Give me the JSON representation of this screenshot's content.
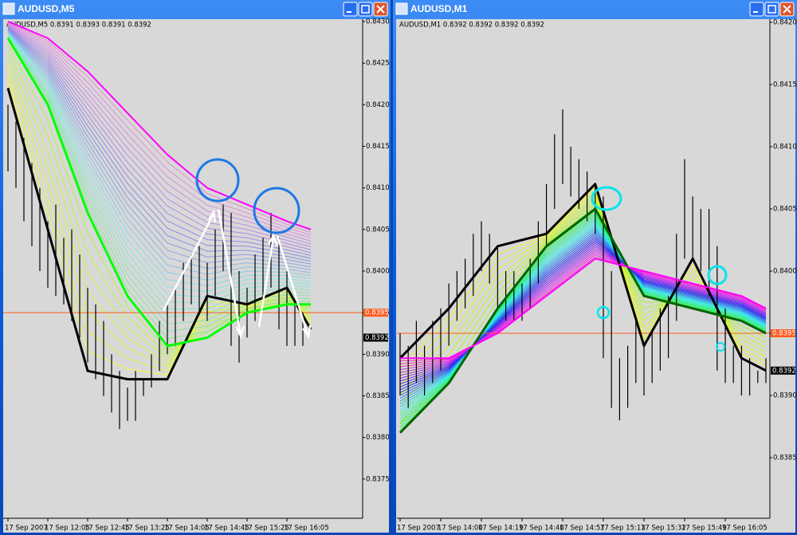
{
  "chart_data": [
    {
      "type": "ohlc",
      "title": "AUDUSD,M5",
      "subtitle": "AUDUSD,M5  0.8391 0.8393 0.8391 0.8392",
      "ylim": [
        0.837,
        0.843
      ],
      "yticks": [
        {
          "value": 0.843,
          "label": "0.8430"
        },
        {
          "value": 0.8425,
          "label": "0.8425"
        },
        {
          "value": 0.842,
          "label": "0.8420"
        },
        {
          "value": 0.8415,
          "label": "0.8415"
        },
        {
          "value": 0.841,
          "label": "0.8410"
        },
        {
          "value": 0.8405,
          "label": "0.8405"
        },
        {
          "value": 0.84,
          "label": "0.8400"
        },
        {
          "value": 0.8395,
          "label": "0.8395"
        },
        {
          "value": 0.839,
          "label": "0.8390"
        },
        {
          "value": 0.8385,
          "label": "0.8385"
        },
        {
          "value": 0.838,
          "label": "0.8380"
        },
        {
          "value": 0.8375,
          "label": "0.8375"
        }
      ],
      "xticks": [
        {
          "value": 0,
          "label": "17 Sep 2007"
        },
        {
          "value": 5,
          "label": "17 Sep 12:05"
        },
        {
          "value": 10,
          "label": "17 Sep 12:45"
        },
        {
          "value": 15,
          "label": "17 Sep 13:25"
        },
        {
          "value": 20,
          "label": "17 Sep 14:05"
        },
        {
          "value": 25,
          "label": "17 Sep 14:45"
        },
        {
          "value": 30,
          "label": "17 Sep 15:25"
        },
        {
          "value": 35,
          "label": "17 Sep 16:05"
        }
      ],
      "high": [
        0.842,
        0.8418,
        0.8416,
        0.8413,
        0.841,
        0.8406,
        0.8408,
        0.8404,
        0.8405,
        0.8402,
        0.8398,
        0.8396,
        0.8394,
        0.839,
        0.8388,
        0.8386,
        0.8388,
        0.8387,
        0.839,
        0.8394,
        0.8396,
        0.8398,
        0.8401,
        0.8402,
        0.8403,
        0.8401,
        0.8405,
        0.8408,
        0.8407,
        0.84,
        0.8398,
        0.8402,
        0.8404,
        0.8407,
        0.8404,
        0.84,
        0.8396,
        0.8395
      ],
      "low": [
        0.8412,
        0.841,
        0.8406,
        0.8403,
        0.84,
        0.8398,
        0.8397,
        0.8396,
        0.8394,
        0.8392,
        0.8389,
        0.8387,
        0.8385,
        0.8383,
        0.8381,
        0.8382,
        0.8382,
        0.8385,
        0.8386,
        0.8388,
        0.839,
        0.8391,
        0.8394,
        0.8396,
        0.8395,
        0.8394,
        0.8397,
        0.84,
        0.8391,
        0.8389,
        0.8392,
        0.8394,
        0.8396,
        0.8398,
        0.8393,
        0.8391,
        0.8391,
        0.8391
      ],
      "lines": [
        {
          "color": "#000000",
          "x": [
            0,
            5,
            10,
            15,
            20,
            25,
            30,
            35,
            38
          ],
          "values": [
            0.8422,
            0.8405,
            0.8388,
            0.8387,
            0.8387,
            0.8397,
            0.8396,
            0.8398,
            0.8393
          ]
        },
        {
          "color": "#00ff00",
          "x": [
            0,
            5,
            10,
            15,
            20,
            25,
            30,
            35,
            38
          ],
          "values": [
            0.8428,
            0.842,
            0.8407,
            0.8397,
            0.8391,
            0.8392,
            0.8395,
            0.8396,
            0.8396
          ]
        },
        {
          "color": "#ff00ff",
          "x": [
            0,
            5,
            10,
            15,
            20,
            25,
            30,
            35,
            38
          ],
          "values": [
            0.843,
            0.8428,
            0.8424,
            0.8419,
            0.8414,
            0.841,
            0.8408,
            0.8406,
            0.8405
          ]
        }
      ],
      "price_line": {
        "value": 0.8395,
        "label": "0.8395",
        "color": "#ff5a1e"
      },
      "bid": {
        "value": 0.8392,
        "label": "0.8392"
      }
    },
    {
      "type": "ohlc",
      "title": "AUDUSD,M1",
      "subtitle": "AUDUSD,M1  0.8392 0.8392 0.8392 0.8392",
      "ylim": [
        0.838,
        0.842
      ],
      "yticks": [
        {
          "value": 0.842,
          "label": "0.8420"
        },
        {
          "value": 0.8415,
          "label": "0.8415"
        },
        {
          "value": 0.841,
          "label": "0.8410"
        },
        {
          "value": 0.8405,
          "label": "0.8405"
        },
        {
          "value": 0.84,
          "label": "0.8400"
        },
        {
          "value": 0.8395,
          "label": "0.8395"
        },
        {
          "value": 0.839,
          "label": "0.8390"
        },
        {
          "value": 0.8385,
          "label": "0.8385"
        }
      ],
      "xticks": [
        {
          "value": 0,
          "label": "17 Sep 2007"
        },
        {
          "value": 5,
          "label": "17 Sep 14:00"
        },
        {
          "value": 10,
          "label": "17 Sep 14:19"
        },
        {
          "value": 15,
          "label": "17 Sep 14:40"
        },
        {
          "value": 20,
          "label": "17 Sep 14:57"
        },
        {
          "value": 25,
          "label": "17 Sep 15:13"
        },
        {
          "value": 30,
          "label": "17 Sep 15:32"
        },
        {
          "value": 35,
          "label": "17 Sep 15:49"
        },
        {
          "value": 40,
          "label": "17 Sep 16:05"
        }
      ],
      "high": [
        0.8395,
        0.8394,
        0.8396,
        0.8394,
        0.8396,
        0.8397,
        0.8399,
        0.84,
        0.8401,
        0.8403,
        0.8404,
        0.8403,
        0.8402,
        0.84,
        0.84,
        0.8399,
        0.8401,
        0.8404,
        0.8407,
        0.8411,
        0.8413,
        0.841,
        0.8409,
        0.8408,
        0.8407,
        0.8406,
        0.84,
        0.8393,
        0.8394,
        0.8396,
        0.8394,
        0.8395,
        0.8397,
        0.8398,
        0.8403,
        0.8409,
        0.8406,
        0.8405,
        0.8405,
        0.8402,
        0.8397,
        0.8394,
        0.8394,
        0.8393,
        0.8392,
        0.8393
      ],
      "low": [
        0.839,
        0.8389,
        0.8391,
        0.839,
        0.8391,
        0.8392,
        0.8394,
        0.8396,
        0.8397,
        0.8398,
        0.84,
        0.8399,
        0.8397,
        0.8396,
        0.8396,
        0.8396,
        0.8397,
        0.8399,
        0.8402,
        0.8405,
        0.8407,
        0.8406,
        0.8405,
        0.8404,
        0.8403,
        0.8393,
        0.8389,
        0.8388,
        0.8389,
        0.8391,
        0.839,
        0.8391,
        0.8392,
        0.8393,
        0.8396,
        0.8401,
        0.8401,
        0.84,
        0.8398,
        0.8392,
        0.8391,
        0.8391,
        0.839,
        0.839,
        0.8391,
        0.8391
      ],
      "lines": [
        {
          "color": "#000000",
          "x": [
            0,
            6,
            12,
            18,
            24,
            30,
            36,
            42,
            45
          ],
          "values": [
            0.8393,
            0.8397,
            0.8402,
            0.8403,
            0.8407,
            0.8394,
            0.8401,
            0.8393,
            0.8392
          ]
        },
        {
          "color": "#006400",
          "x": [
            0,
            6,
            12,
            18,
            24,
            30,
            36,
            42,
            45
          ],
          "values": [
            0.8387,
            0.8391,
            0.8397,
            0.8402,
            0.8405,
            0.8398,
            0.8397,
            0.8396,
            0.8395
          ]
        },
        {
          "color": "#ff00ff",
          "x": [
            0,
            6,
            12,
            18,
            24,
            30,
            36,
            42,
            45
          ],
          "values": [
            0.8393,
            0.8393,
            0.8395,
            0.8398,
            0.8401,
            0.84,
            0.8399,
            0.8398,
            0.8397
          ]
        }
      ],
      "price_line": {
        "value": 0.8395,
        "label": "0.8395",
        "color": "#ff5a1e"
      },
      "bid": {
        "value": 0.8392,
        "label": "0.8392"
      }
    }
  ]
}
